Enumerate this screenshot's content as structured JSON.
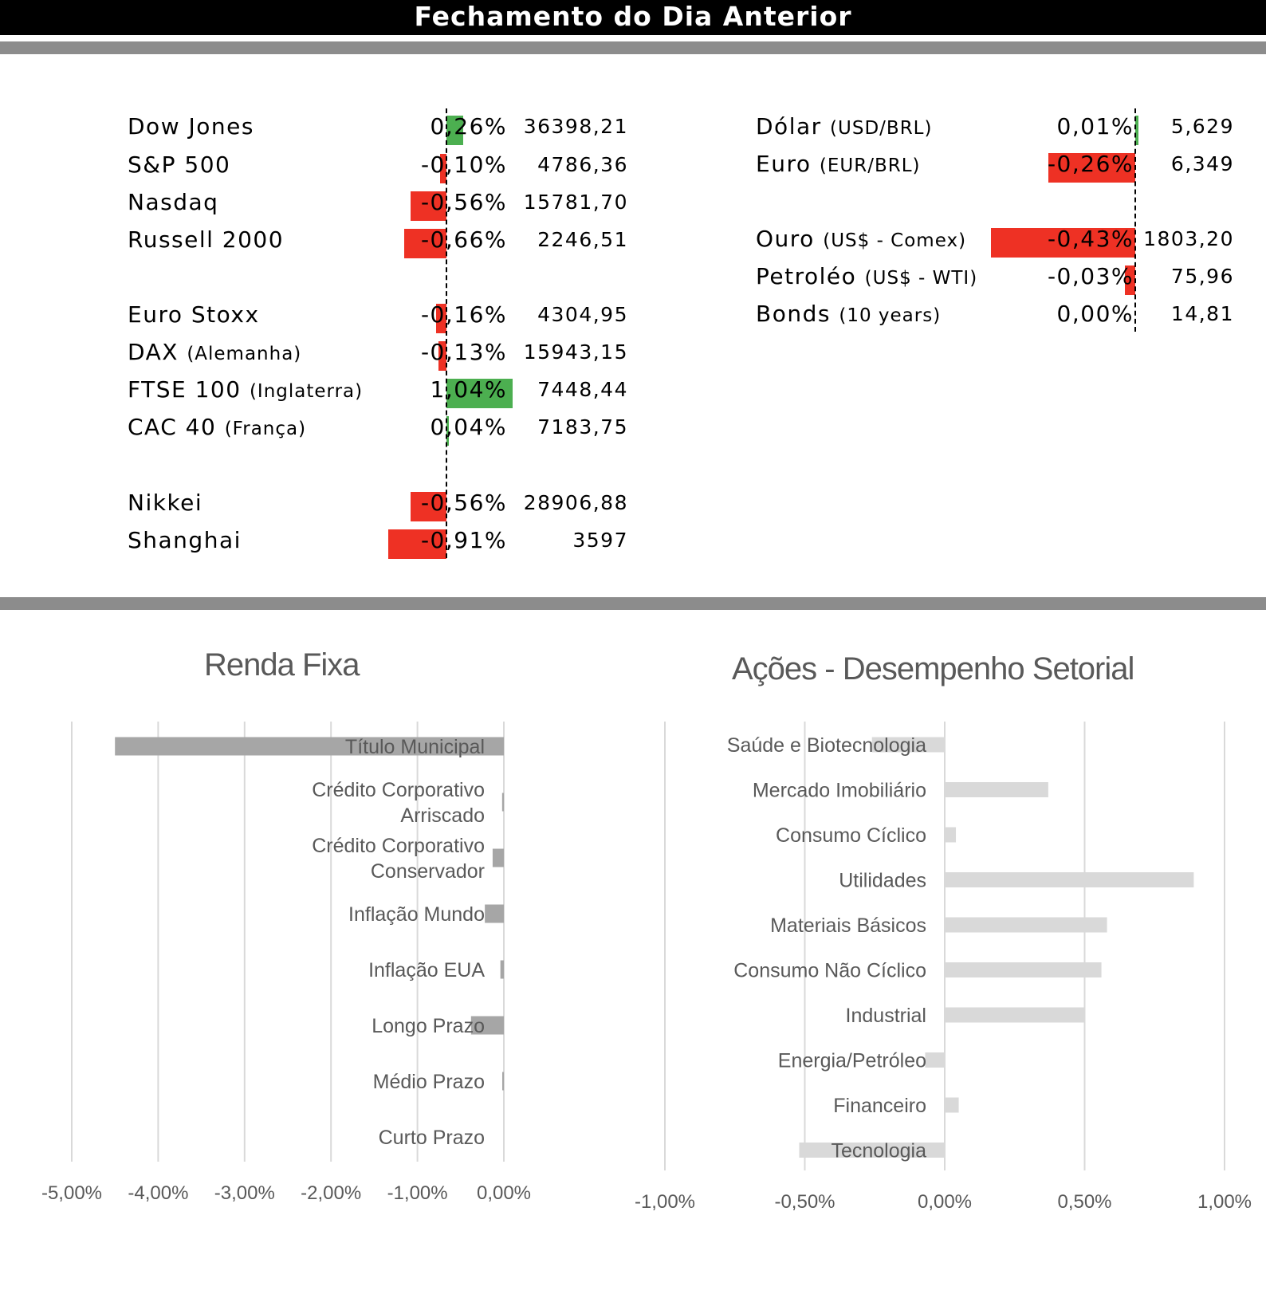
{
  "header": {
    "title": "Fechamento do Dia Anterior"
  },
  "indices": [
    {
      "name": "Dow Jones",
      "sub": "",
      "pct_label": "0,26%",
      "pct": 0.26,
      "value": "36398,21"
    },
    {
      "name": "S&P 500",
      "sub": "",
      "pct_label": "-0,10%",
      "pct": -0.1,
      "value": "4786,36"
    },
    {
      "name": "Nasdaq",
      "sub": "",
      "pct_label": "-0,56%",
      "pct": -0.56,
      "value": "15781,70"
    },
    {
      "name": "Russell 2000",
      "sub": "",
      "pct_label": "-0,66%",
      "pct": -0.66,
      "value": "2246,51"
    },
    {
      "name": "Euro Stoxx",
      "sub": "",
      "pct_label": "-0,16%",
      "pct": -0.16,
      "value": "4304,95"
    },
    {
      "name": "DAX",
      "sub": "(Alemanha)",
      "pct_label": "-0,13%",
      "pct": -0.13,
      "value": "15943,15"
    },
    {
      "name": "FTSE 100",
      "sub": "(Inglaterra)",
      "pct_label": "1,04%",
      "pct": 1.04,
      "value": "7448,44"
    },
    {
      "name": "CAC 40",
      "sub": "(França)",
      "pct_label": "0,04%",
      "pct": 0.04,
      "value": "7183,75"
    },
    {
      "name": "Nikkei",
      "sub": "",
      "pct_label": "-0,56%",
      "pct": -0.56,
      "value": "28906,88"
    },
    {
      "name": "Shanghai",
      "sub": "",
      "pct_label": "-0,91%",
      "pct": -0.91,
      "value": "3597"
    }
  ],
  "assets": [
    {
      "name": "Dólar",
      "sub": "(USD/BRL)",
      "pct_label": "0,01%",
      "pct": 0.01,
      "value": "5,629"
    },
    {
      "name": "Euro",
      "sub": "(EUR/BRL)",
      "pct_label": "-0,26%",
      "pct": -0.26,
      "value": "6,349"
    },
    {
      "name": "Ouro",
      "sub": "(US$ - Comex)",
      "pct_label": "-0,43%",
      "pct": -0.43,
      "value": "1803,20"
    },
    {
      "name": "Petroléo",
      "sub": "(US$ - WTI)",
      "pct_label": "-0,03%",
      "pct": -0.03,
      "value": "75,96"
    },
    {
      "name": "Bonds",
      "sub": "(10 years)",
      "pct_label": "0,00%",
      "pct": 0.0,
      "value": "14,81"
    }
  ],
  "colors": {
    "positive": "#4caf50",
    "negative": "#ee3124",
    "renda_bar": "#a6a6a6",
    "setorial_bar": "#d9d9d9",
    "grid": "#d9d9d9",
    "text": "#595959"
  },
  "chart_data": [
    {
      "type": "bar",
      "orientation": "horizontal",
      "title": "Renda Fixa",
      "categories": [
        "Título Municipal",
        "Crédito Corporativo Arriscado",
        "Crédito Corporativo Conservador",
        "Inflação Mundo",
        "Inflação EUA",
        "Longo Prazo",
        "Médio Prazo",
        "Curto Prazo"
      ],
      "values": [
        -4.5,
        -0.02,
        -0.13,
        -0.22,
        -0.04,
        -0.38,
        -0.01,
        0.0
      ],
      "xlim": [
        -5,
        0
      ],
      "xticks": [
        "-5,00%",
        "-4,00%",
        "-3,00%",
        "-2,00%",
        "-1,00%",
        "0,00%"
      ],
      "grid": true
    },
    {
      "type": "bar",
      "orientation": "horizontal",
      "title": "Ações - Desempenho Setorial",
      "categories": [
        "Saúde e Biotecnologia",
        "Mercado Imobiliário",
        "Consumo Cíclico",
        "Utilidades",
        "Materiais Básicos",
        "Consumo Não Cíclico",
        "Industrial",
        "Energia/Petróleo",
        "Financeiro",
        "Tecnologia"
      ],
      "values": [
        -0.26,
        0.37,
        0.04,
        0.89,
        0.58,
        0.56,
        0.5,
        -0.07,
        0.05,
        -0.52
      ],
      "xlim": [
        -1,
        1
      ],
      "xticks": [
        "-1,00%",
        "-0,50%",
        "0,00%",
        "0,50%",
        "1,00%"
      ],
      "grid": true
    }
  ]
}
